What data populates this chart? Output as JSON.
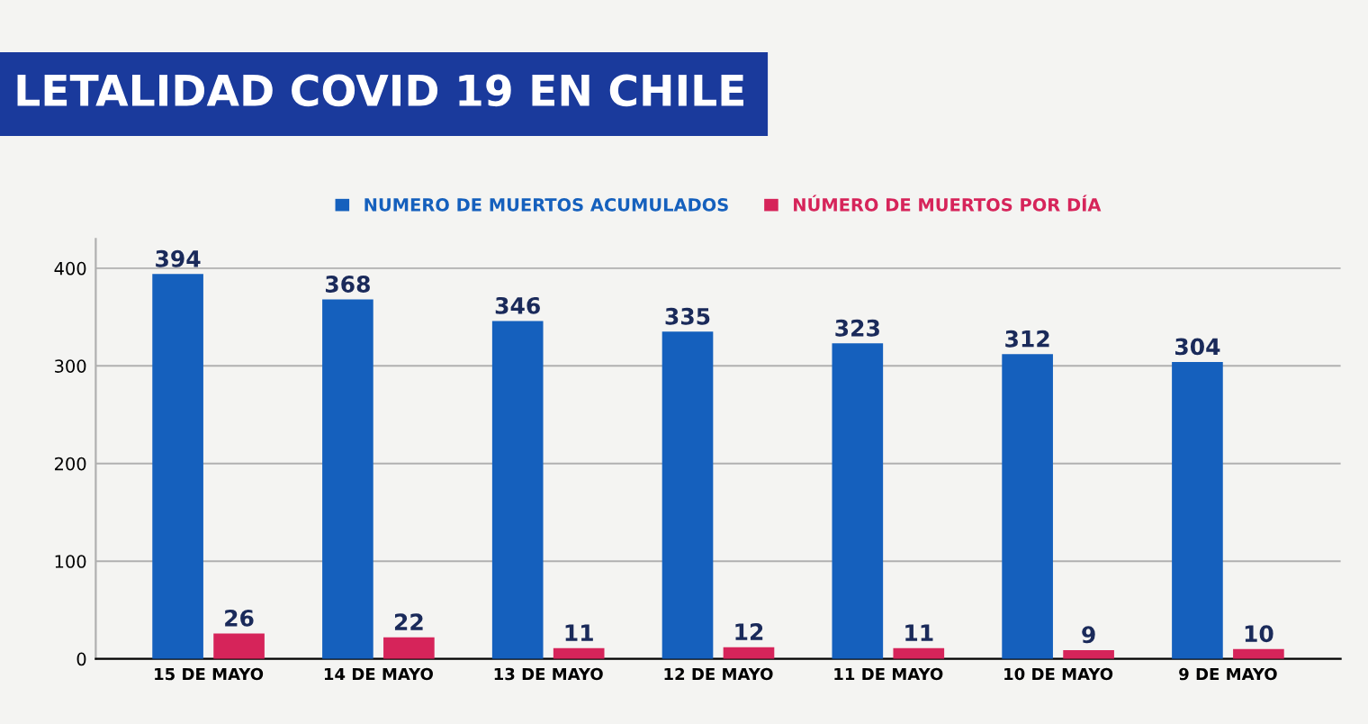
{
  "chart_data": {
    "type": "bar",
    "title": "LETALIDAD COVID 19 EN CHILE",
    "categories": [
      "15 DE MAYO",
      "14 DE MAYO",
      "13 DE MAYO",
      "12 DE MAYO",
      "11 DE MAYO",
      "10 DE MAYO",
      "9 DE MAYO"
    ],
    "series": [
      {
        "name": "NUMERO DE MUERTOS ACUMULADOS",
        "color": "#1560bd",
        "values": [
          394,
          368,
          346,
          335,
          323,
          312,
          304
        ]
      },
      {
        "name": "NÚMERO DE MUERTOS POR DÍA",
        "color": "#d6245a",
        "values": [
          26,
          22,
          11,
          12,
          11,
          9,
          10
        ]
      }
    ],
    "ylim": [
      0,
      430
    ],
    "yticks": [
      0,
      100,
      200,
      300,
      400
    ],
    "grid": "y",
    "legend": "top",
    "data_labels": true
  }
}
